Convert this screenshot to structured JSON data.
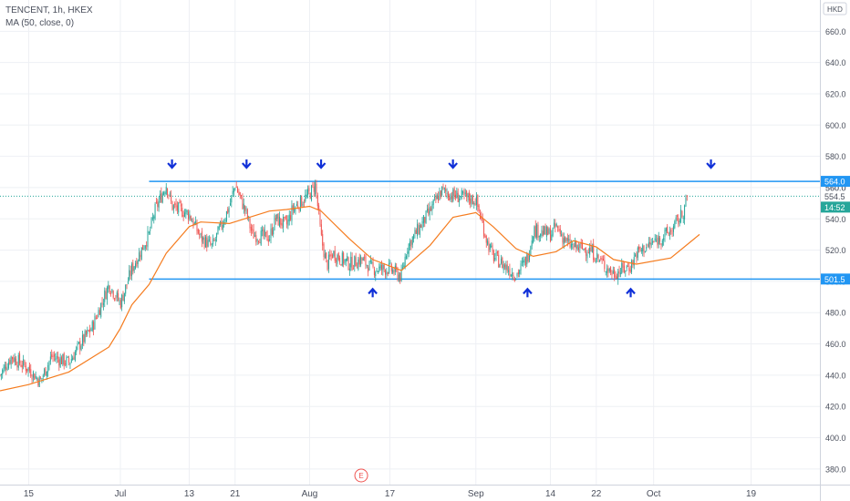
{
  "header": {
    "symbol": "TENCENT, 1h, HKEX",
    "indicator": "MA (50, close, 0)"
  },
  "currency": "HKD",
  "earnings_marker": "E",
  "price_tags": {
    "resistance": "564.0",
    "current": "554.5",
    "countdown": "14:52",
    "support": "501.5",
    "hidden": "560.0"
  },
  "colors": {
    "up": "#26a69a",
    "down": "#ef5350",
    "ma": "#f57c1f",
    "level": "#2196f3",
    "arrow": "#1030d8",
    "current": "#26a69a",
    "earnings": "#ef5350"
  },
  "chart_data": {
    "type": "candlestick",
    "y_axis": {
      "min": 370,
      "max": 680,
      "ticks": [
        380,
        400,
        420,
        440,
        460,
        480,
        500,
        520,
        540,
        560,
        580,
        600,
        620,
        640,
        660
      ],
      "tick_labels": [
        "380.0",
        "400.0",
        "420.0",
        "440.0",
        "460.0",
        "480.0",
        "500.0",
        "520.0",
        "540.0",
        "560.0",
        "580.0",
        "600.0",
        "620.0",
        "640.0",
        "660.0"
      ]
    },
    "x_axis": {
      "tick_labels": [
        "15",
        "Jul",
        "13",
        "21",
        "Aug",
        "17",
        "Sep",
        "14",
        "22",
        "Oct",
        "19"
      ],
      "tick_dates": [
        "2020-06-15",
        "2020-07-01",
        "2020-07-13",
        "2020-07-21",
        "2020-08-03",
        "2020-08-17",
        "2020-09-01",
        "2020-09-14",
        "2020-09-22",
        "2020-10-02",
        "2020-10-19"
      ],
      "range": [
        "2020-06-10",
        "2020-10-31"
      ]
    },
    "close_path": [
      [
        "2020-06-10",
        440
      ],
      [
        "2020-06-12",
        452
      ],
      [
        "2020-06-15",
        444
      ],
      [
        "2020-06-17",
        436
      ],
      [
        "2020-06-19",
        452
      ],
      [
        "2020-06-22",
        448
      ],
      [
        "2020-06-24",
        460
      ],
      [
        "2020-06-26",
        470
      ],
      [
        "2020-06-29",
        498
      ],
      [
        "2020-07-01",
        486
      ],
      [
        "2020-07-03",
        508
      ],
      [
        "2020-07-06",
        530
      ],
      [
        "2020-07-07",
        545
      ],
      [
        "2020-07-09",
        562
      ],
      [
        "2020-07-10",
        548
      ],
      [
        "2020-07-13",
        543
      ],
      [
        "2020-07-15",
        528
      ],
      [
        "2020-07-17",
        522
      ],
      [
        "2020-07-20",
        548
      ],
      [
        "2020-07-21",
        562
      ],
      [
        "2020-07-23",
        543
      ],
      [
        "2020-07-24",
        530
      ],
      [
        "2020-07-27",
        528
      ],
      [
        "2020-07-28",
        540
      ],
      [
        "2020-07-30",
        536
      ],
      [
        "2020-07-31",
        546
      ],
      [
        "2020-08-03",
        556
      ],
      [
        "2020-08-04",
        562
      ],
      [
        "2020-08-05",
        528
      ],
      [
        "2020-08-06",
        510
      ],
      [
        "2020-08-07",
        518
      ],
      [
        "2020-08-10",
        511
      ],
      [
        "2020-08-12",
        514
      ],
      [
        "2020-08-14",
        508
      ],
      [
        "2020-08-17",
        508
      ],
      [
        "2020-08-19",
        503
      ],
      [
        "2020-08-20",
        522
      ],
      [
        "2020-08-24",
        545
      ],
      [
        "2020-08-26",
        558
      ],
      [
        "2020-08-28",
        555
      ],
      [
        "2020-09-01",
        552
      ],
      [
        "2020-09-03",
        525
      ],
      [
        "2020-09-04",
        516
      ],
      [
        "2020-09-07",
        507
      ],
      [
        "2020-09-08",
        504
      ],
      [
        "2020-09-10",
        515
      ],
      [
        "2020-09-11",
        533
      ],
      [
        "2020-09-14",
        530
      ],
      [
        "2020-09-15",
        535
      ],
      [
        "2020-09-17",
        524
      ],
      [
        "2020-09-18",
        522
      ],
      [
        "2020-09-21",
        520
      ],
      [
        "2020-09-22",
        516
      ],
      [
        "2020-09-24",
        508
      ],
      [
        "2020-09-25",
        505
      ],
      [
        "2020-09-28",
        510
      ],
      [
        "2020-09-29",
        518
      ],
      [
        "2020-10-05",
        532
      ],
      [
        "2020-10-07",
        543
      ],
      [
        "2020-10-08",
        554.5
      ]
    ],
    "series": [
      {
        "name": "MA (50, close, 0)",
        "type": "line",
        "points": [
          [
            "2020-06-10",
            430
          ],
          [
            "2020-06-15",
            434
          ],
          [
            "2020-06-22",
            442
          ],
          [
            "2020-06-29",
            458
          ],
          [
            "2020-07-01",
            470
          ],
          [
            "2020-07-03",
            485
          ],
          [
            "2020-07-06",
            498
          ],
          [
            "2020-07-09",
            518
          ],
          [
            "2020-07-13",
            535
          ],
          [
            "2020-07-15",
            538
          ],
          [
            "2020-07-20",
            537
          ],
          [
            "2020-07-27",
            545
          ],
          [
            "2020-07-30",
            546
          ],
          [
            "2020-08-03",
            548
          ],
          [
            "2020-08-05",
            545
          ],
          [
            "2020-08-10",
            527
          ],
          [
            "2020-08-14",
            514
          ],
          [
            "2020-08-19",
            507
          ],
          [
            "2020-08-24",
            523
          ],
          [
            "2020-08-28",
            541
          ],
          [
            "2020-09-01",
            544
          ],
          [
            "2020-09-04",
            535
          ],
          [
            "2020-09-08",
            521
          ],
          [
            "2020-09-11",
            516
          ],
          [
            "2020-09-15",
            519
          ],
          [
            "2020-09-18",
            526
          ],
          [
            "2020-09-22",
            522
          ],
          [
            "2020-09-25",
            514
          ],
          [
            "2020-09-29",
            511
          ],
          [
            "2020-10-05",
            515
          ],
          [
            "2020-10-10",
            530
          ]
        ]
      }
    ],
    "levels": [
      {
        "name": "resistance",
        "value": 564.0,
        "start": "2020-07-06"
      },
      {
        "name": "support",
        "value": 501.5,
        "start": "2020-07-06"
      }
    ],
    "current_price": 554.5,
    "annotations": [
      {
        "type": "arrow-down",
        "date": "2020-07-10",
        "value": 564
      },
      {
        "type": "arrow-down",
        "date": "2020-07-23",
        "value": 564
      },
      {
        "type": "arrow-down",
        "date": "2020-08-05",
        "value": 564
      },
      {
        "type": "arrow-down",
        "date": "2020-08-28",
        "value": 564
      },
      {
        "type": "arrow-down",
        "date": "2020-10-12",
        "value": 564
      },
      {
        "type": "arrow-up",
        "date": "2020-08-14",
        "value": 501.5
      },
      {
        "type": "arrow-up",
        "date": "2020-09-10",
        "value": 501.5
      },
      {
        "type": "arrow-up",
        "date": "2020-09-28",
        "value": 501.5
      }
    ],
    "grid": true,
    "legend": "top-left"
  }
}
